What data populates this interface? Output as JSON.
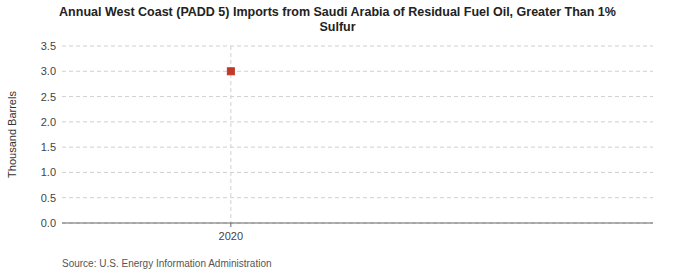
{
  "chart_data": {
    "type": "scatter",
    "title": "Annual West Coast (PADD 5) Imports from Saudi Arabia of Residual Fuel Oil, Greater Than 1%\nSulfur",
    "y_label": "Thousand Barrels",
    "source": "Source: U.S. Energy Information Administration",
    "x": [
      2020
    ],
    "values": [
      3.0
    ],
    "color": "#c0392b",
    "marker": "square",
    "xlim": [
      2019.4,
      2021.5
    ],
    "xticks": [
      2020
    ],
    "ylim": [
      0.0,
      3.5
    ],
    "yticks": [
      {
        "value": 0.0,
        "label": "0.0"
      },
      0.5,
      {
        "value": 1.0,
        "label": "1.0"
      },
      1.5,
      {
        "value": 2.0,
        "label": "2.0"
      },
      2.5,
      {
        "value": 3.0,
        "label": "3.0"
      },
      3.5
    ],
    "grid": true
  }
}
